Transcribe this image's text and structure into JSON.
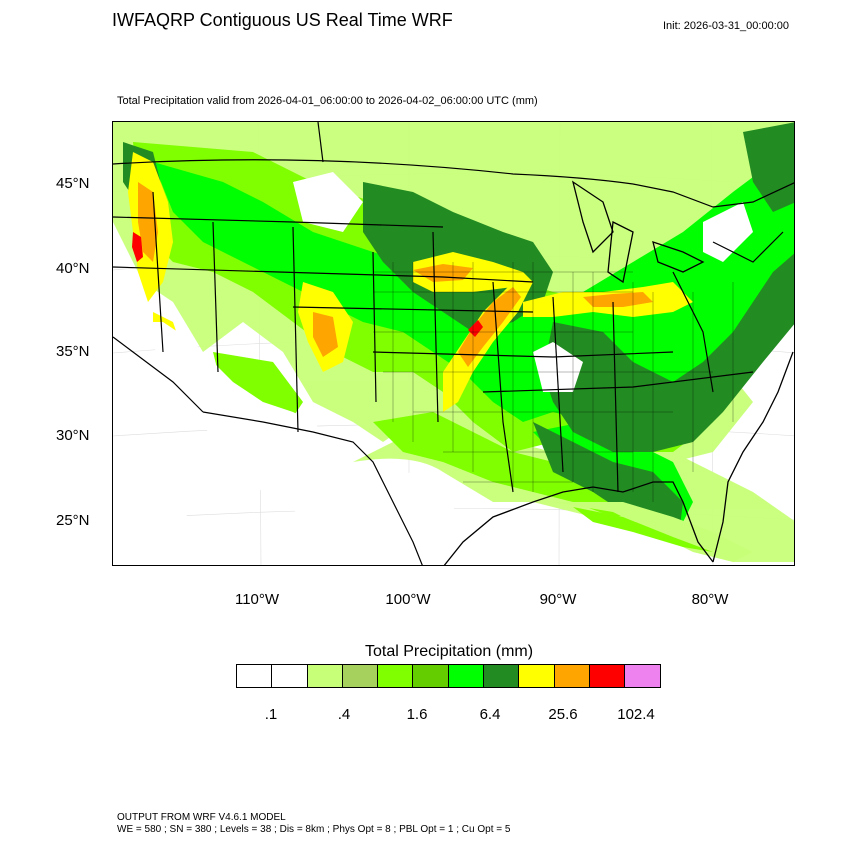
{
  "header": {
    "title": "IWFAQRP Contiguous US Real Time WRF",
    "init": "Init: 2026-03-31_00:00:00",
    "valid": "Total Precipitation valid from 2026-04-01_06:00:00 to 2026-04-02_06:00:00 UTC   (mm)"
  },
  "map": {
    "lat_labels": [
      "45°N",
      "40°N",
      "35°N",
      "30°N",
      "25°N"
    ],
    "lon_labels": [
      "110°W",
      "100°W",
      "90°W",
      "80°W"
    ]
  },
  "legend": {
    "title": "Total Precipitation  (mm)",
    "colors": [
      "#ffffff",
      "#ffffff",
      "#c8ff78",
      "#a6d15c",
      "#7fff00",
      "#64cd00",
      "#00ff00",
      "#228b22",
      "#ffff00",
      "#ffa500",
      "#ff0000",
      "#ee82ee"
    ],
    "labels": [
      ".1",
      ".4",
      "1.6",
      "6.4",
      "25.6",
      "102.4"
    ]
  },
  "footer": {
    "line1": "OUTPUT FROM WRF V4.6.1 MODEL",
    "line2": "WE = 580 ; SN = 380 ; Levels = 38 ; Dis = 8km ; Phys Opt = 8 ; PBL Opt = 1 ; Cu Opt = 5"
  }
}
